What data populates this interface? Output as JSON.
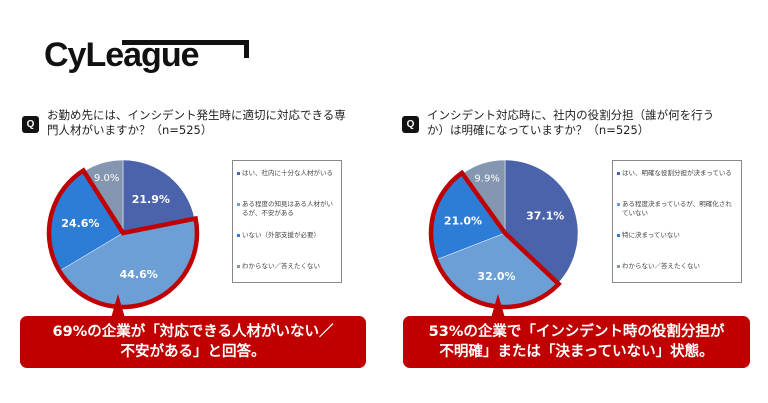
{
  "logo": "CyLeague",
  "colors": {
    "accent": "#c00000",
    "dark_blue": "#4a63ab",
    "light_blue": "#6b9fd6",
    "mid_blue": "#2d7dd6",
    "gray": "#8496b0"
  },
  "chart_data": [
    {
      "type": "pie",
      "title": "お勤め先には、インシデント発生時に適切に対応できる専門人材がいますか？（n=525）",
      "q_badge": "Q",
      "categories": [
        "はい、社内に十分な人材がいる",
        "ある程度の知見はある人材がいるが、不安がある",
        "いない（外部支援が必要）",
        "わからない／答えたくない"
      ],
      "values": [
        21.9,
        44.6,
        24.6,
        9.0
      ],
      "labels": [
        "21.9%",
        "44.6%",
        "24.6%",
        "9.0%"
      ],
      "highlighted": [
        1,
        2
      ],
      "legend": "right",
      "callout": "69%の企業が「対応できる人材がいない／\n不安がある」と回答。"
    },
    {
      "type": "pie",
      "title": "インシデント対応時に、社内の役割分担（誰が何を行うか）は明確になっていますか？（n=525）",
      "q_badge": "Q",
      "categories": [
        "はい、明確な役割分担が決まっている",
        "ある程度決まっているが、明確化されていない",
        "特に決まっていない",
        "わからない／答えたくない"
      ],
      "values": [
        37.1,
        32.0,
        21.0,
        9.9
      ],
      "labels": [
        "37.1%",
        "32.0%",
        "21.0%",
        "9.9%"
      ],
      "highlighted": [
        1,
        2
      ],
      "legend": "right",
      "callout": "53%の企業で「インシデント時の役割分担が\n不明確」または「決まっていない」状態。"
    }
  ]
}
